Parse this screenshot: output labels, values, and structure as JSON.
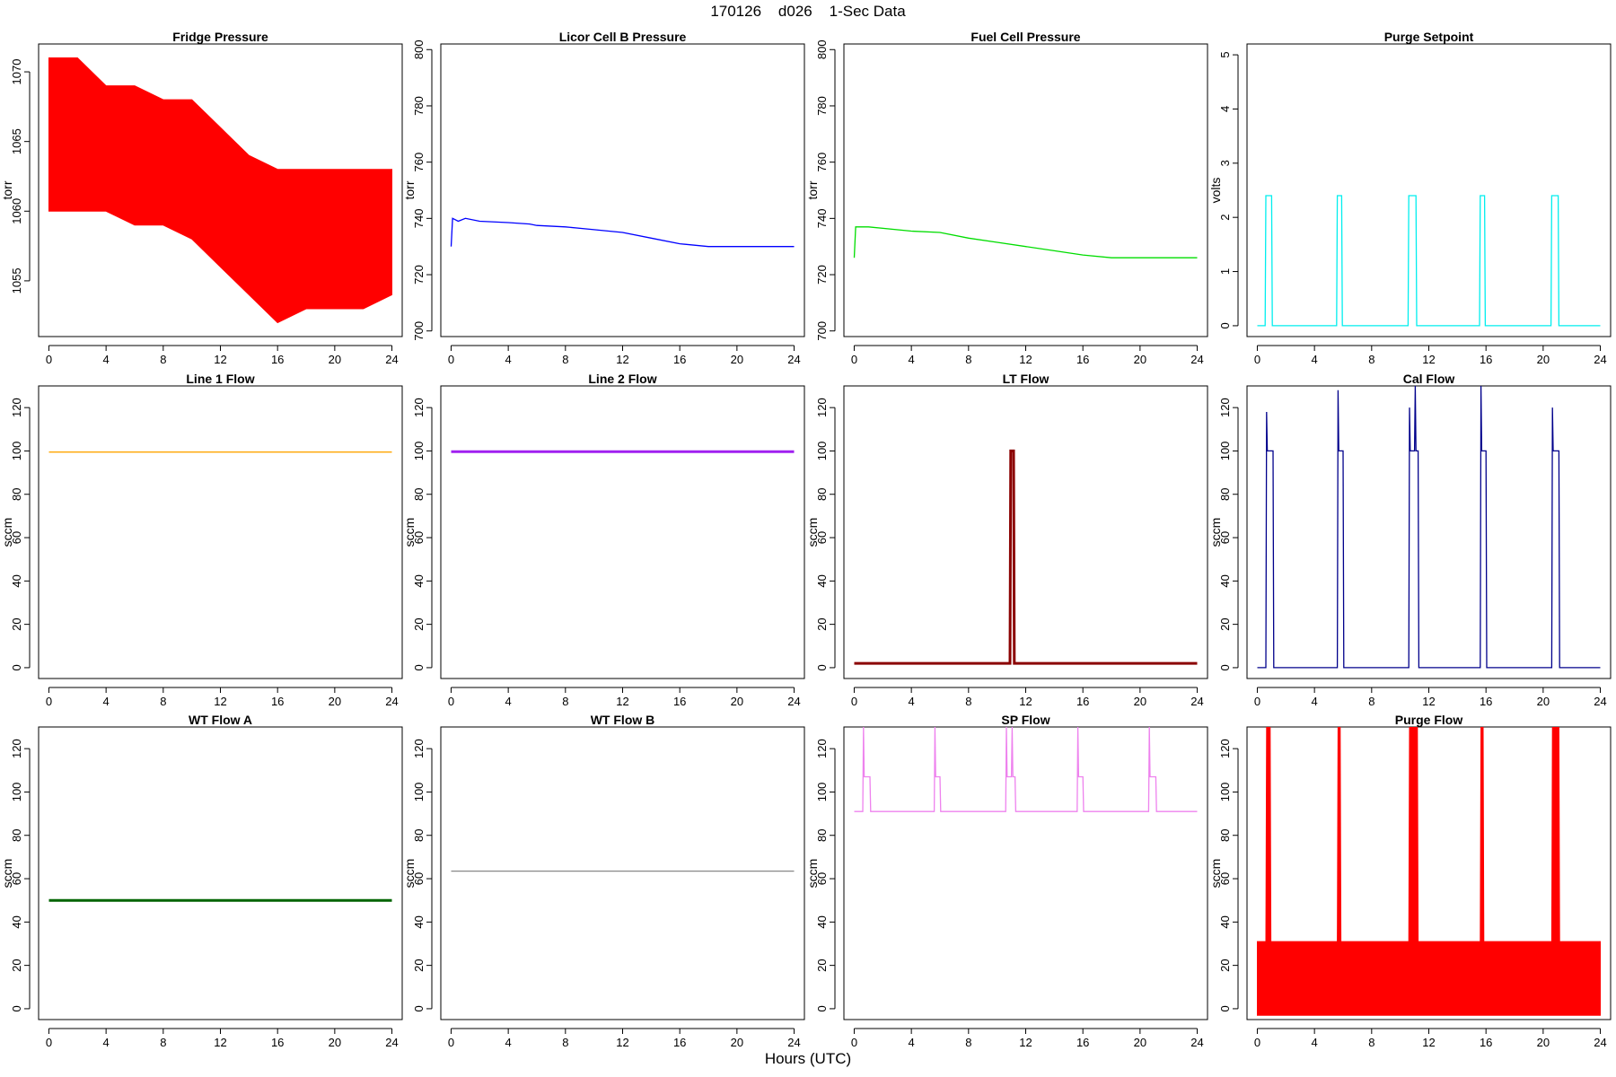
{
  "figure": {
    "title": "170126    d026    1-Sec Data",
    "xlabel": "Hours (UTC)"
  },
  "chart_data": [
    {
      "type": "line",
      "title": "Fridge Pressure",
      "ylabel": "torr",
      "color": "#ff0000",
      "xlim": [
        0,
        24
      ],
      "ylim": [
        1051,
        1072
      ],
      "xticks": [
        0,
        4,
        8,
        12,
        16,
        20,
        24
      ],
      "yticks": [
        1055,
        1060,
        1065,
        1070
      ],
      "band": true,
      "series": [
        {
          "x": [
            0,
            2,
            4,
            6,
            8,
            10,
            12,
            14,
            16,
            18,
            20,
            22,
            24
          ],
          "y_mid": [
            1065,
            1065,
            1064.5,
            1064,
            1064,
            1063,
            1061,
            1059,
            1058,
            1058,
            1058,
            1058,
            1058
          ],
          "y_high": [
            1071,
            1071,
            1069,
            1069,
            1068,
            1068,
            1066,
            1064,
            1063,
            1063,
            1063,
            1063,
            1063
          ],
          "y_low": [
            1060,
            1060,
            1060,
            1059,
            1059,
            1058,
            1056,
            1054,
            1052,
            1053,
            1053,
            1053,
            1054
          ]
        }
      ]
    },
    {
      "type": "line",
      "title": "Licor Cell B Pressure",
      "ylabel": "torr",
      "color": "#0000ff",
      "xlim": [
        0,
        24
      ],
      "ylim": [
        698,
        802
      ],
      "xticks": [
        0,
        4,
        8,
        12,
        16,
        20,
        24
      ],
      "yticks": [
        700,
        720,
        740,
        760,
        780,
        800
      ],
      "series": [
        {
          "x": [
            0,
            0.1,
            0.5,
            1,
            2,
            4,
            5.5,
            6,
            8,
            10,
            12,
            14,
            16,
            18,
            20,
            22,
            24
          ],
          "y": [
            730,
            740,
            739,
            740,
            739,
            738.5,
            738,
            737.5,
            737,
            736,
            735,
            733,
            731,
            730,
            730,
            730,
            730
          ]
        }
      ]
    },
    {
      "type": "line",
      "title": "Fuel Cell Pressure",
      "ylabel": "torr",
      "color": "#00dd00",
      "xlim": [
        0,
        24
      ],
      "ylim": [
        698,
        802
      ],
      "xticks": [
        0,
        4,
        8,
        12,
        16,
        20,
        24
      ],
      "yticks": [
        700,
        720,
        740,
        760,
        780,
        800
      ],
      "series": [
        {
          "x": [
            0,
            0.1,
            1,
            4,
            6,
            8,
            10,
            12,
            14,
            16,
            18,
            20,
            22,
            24
          ],
          "y": [
            726,
            737,
            737,
            735.5,
            735,
            733,
            731.5,
            730,
            728.5,
            727,
            726,
            726,
            726,
            726
          ]
        }
      ]
    },
    {
      "type": "line",
      "title": "Purge Setpoint",
      "ylabel": "volts",
      "color": "#00eeee",
      "xlim": [
        0,
        24
      ],
      "ylim": [
        -0.2,
        5.2
      ],
      "xticks": [
        0,
        4,
        8,
        12,
        16,
        20,
        24
      ],
      "yticks": [
        0,
        1,
        2,
        3,
        4,
        5
      ],
      "series": [
        {
          "x": [
            0,
            0.55,
            0.6,
            1,
            1.05,
            5.55,
            5.6,
            5.9,
            5.95,
            10.55,
            10.6,
            11.1,
            11.15,
            15.55,
            15.6,
            15.9,
            15.95,
            20.55,
            20.6,
            21.05,
            21.1,
            24
          ],
          "y": [
            0,
            0,
            2.4,
            2.4,
            0,
            0,
            2.4,
            2.4,
            0,
            0,
            2.4,
            2.4,
            0,
            0,
            2.4,
            2.4,
            0,
            0,
            2.4,
            2.4,
            0,
            0
          ]
        }
      ]
    },
    {
      "type": "line",
      "title": "Line 1 Flow",
      "ylabel": "sccm",
      "color": "#ffa500",
      "xlim": [
        0,
        24
      ],
      "ylim": [
        -5,
        130
      ],
      "xticks": [
        0,
        4,
        8,
        12,
        16,
        20,
        24
      ],
      "yticks": [
        0,
        20,
        40,
        60,
        80,
        100,
        120
      ],
      "series": [
        {
          "x": [
            0,
            24
          ],
          "y": [
            99.5,
            99.5
          ]
        }
      ]
    },
    {
      "type": "line",
      "title": "Line 2 Flow",
      "ylabel": "sccm",
      "color": "#a020f0",
      "xlim": [
        0,
        24
      ],
      "ylim": [
        -5,
        130
      ],
      "xticks": [
        0,
        4,
        8,
        12,
        16,
        20,
        24
      ],
      "yticks": [
        0,
        20,
        40,
        60,
        80,
        100,
        120
      ],
      "series": [
        {
          "x": [
            0,
            24
          ],
          "y": [
            99.7,
            99.7
          ]
        }
      ]
    },
    {
      "type": "line",
      "title": "LT Flow",
      "ylabel": "sccm",
      "color": "#8b0000",
      "xlim": [
        0,
        24
      ],
      "ylim": [
        -5,
        130
      ],
      "xticks": [
        0,
        4,
        8,
        12,
        16,
        20,
        24
      ],
      "yticks": [
        0,
        20,
        40,
        60,
        80,
        100,
        120
      ],
      "series": [
        {
          "x": [
            0,
            10.9,
            10.95,
            11.15,
            11.2,
            24
          ],
          "y": [
            2,
            2,
            100,
            100,
            2,
            2
          ]
        }
      ]
    },
    {
      "type": "line",
      "title": "Cal Flow",
      "ylabel": "sccm",
      "color": "#00008b",
      "xlim": [
        0,
        24
      ],
      "ylim": [
        -5,
        130
      ],
      "xticks": [
        0,
        4,
        8,
        12,
        16,
        20,
        24
      ],
      "yticks": [
        0,
        20,
        40,
        60,
        80,
        100,
        120
      ],
      "series": [
        {
          "x": [
            0,
            0.6,
            0.65,
            0.7,
            1.1,
            1.15,
            5.6,
            5.65,
            5.7,
            6,
            6.05,
            10.6,
            10.65,
            10.7,
            11,
            11.05,
            11.1,
            11.25,
            11.3,
            15.6,
            15.65,
            15.7,
            16,
            16.05,
            20.6,
            20.65,
            20.7,
            21.1,
            21.15,
            24
          ],
          "y": [
            0,
            0,
            118,
            100,
            100,
            0,
            0,
            128,
            100,
            100,
            0,
            0,
            120,
            100,
            100,
            130,
            100,
            100,
            0,
            0,
            130,
            100,
            100,
            0,
            0,
            120,
            100,
            100,
            0,
            0
          ]
        }
      ]
    },
    {
      "type": "line",
      "title": "WT Flow A",
      "ylabel": "sccm",
      "color": "#006400",
      "xlim": [
        0,
        24
      ],
      "ylim": [
        -5,
        130
      ],
      "xticks": [
        0,
        4,
        8,
        12,
        16,
        20,
        24
      ],
      "yticks": [
        0,
        20,
        40,
        60,
        80,
        100,
        120
      ],
      "series": [
        {
          "x": [
            0,
            24
          ],
          "y": [
            50,
            50
          ]
        }
      ]
    },
    {
      "type": "line",
      "title": "WT Flow B",
      "ylabel": "sccm",
      "color": "#888888",
      "xlim": [
        0,
        24
      ],
      "ylim": [
        -5,
        130
      ],
      "xticks": [
        0,
        4,
        8,
        12,
        16,
        20,
        24
      ],
      "yticks": [
        0,
        20,
        40,
        60,
        80,
        100,
        120
      ],
      "series": [
        {
          "x": [
            0,
            24
          ],
          "y": [
            63.5,
            63.5
          ]
        }
      ]
    },
    {
      "type": "line",
      "title": "SP Flow",
      "ylabel": "sccm",
      "color": "#ee82ee",
      "xlim": [
        0,
        24
      ],
      "ylim": [
        -5,
        130
      ],
      "xticks": [
        0,
        4,
        8,
        12,
        16,
        20,
        24
      ],
      "yticks": [
        0,
        20,
        40,
        60,
        80,
        100,
        120
      ],
      "series": [
        {
          "x": [
            0,
            0.6,
            0.65,
            0.7,
            1.1,
            1.15,
            5.6,
            5.65,
            5.7,
            6,
            6.05,
            10.6,
            10.65,
            10.7,
            11,
            11.05,
            11.1,
            11.25,
            11.3,
            15.6,
            15.65,
            15.7,
            16,
            16.05,
            20.6,
            20.65,
            20.7,
            21.1,
            21.15,
            24
          ],
          "y": [
            91,
            91,
            130,
            107,
            107,
            91,
            91,
            130,
            107,
            107,
            91,
            91,
            130,
            107,
            107,
            130,
            107,
            107,
            91,
            91,
            130,
            107,
            107,
            91,
            91,
            130,
            107,
            107,
            91,
            91
          ]
        }
      ]
    },
    {
      "type": "line",
      "title": "Purge Flow",
      "ylabel": "sccm",
      "color": "#ff0000",
      "xlim": [
        0,
        24
      ],
      "ylim": [
        -5,
        130
      ],
      "xticks": [
        0,
        4,
        8,
        12,
        16,
        20,
        24
      ],
      "yticks": [
        0,
        20,
        40,
        60,
        80,
        100,
        120
      ],
      "band": true,
      "series": [
        {
          "x": [
            0,
            0.6,
            0.65,
            0.9,
            0.95,
            5.6,
            5.65,
            5.8,
            5.85,
            10.6,
            10.65,
            11.2,
            11.25,
            15.6,
            15.65,
            15.8,
            15.85,
            20.6,
            20.65,
            21.1,
            21.15,
            24
          ],
          "y_mid": [
            15,
            15,
            60,
            60,
            15,
            15,
            60,
            60,
            15,
            15,
            60,
            60,
            15,
            15,
            60,
            60,
            15,
            15,
            60,
            60,
            15,
            15
          ],
          "y_high": [
            31,
            31,
            130,
            130,
            31,
            31,
            130,
            130,
            31,
            31,
            130,
            130,
            31,
            31,
            130,
            130,
            31,
            31,
            130,
            130,
            31,
            31
          ],
          "y_low": [
            -3,
            -3,
            -3,
            -3,
            -3,
            -3,
            -3,
            -3,
            -3,
            -3,
            -3,
            -3,
            -3,
            -3,
            -3,
            -3,
            -3,
            -3,
            -3,
            -3,
            -3,
            -3
          ]
        }
      ]
    }
  ]
}
